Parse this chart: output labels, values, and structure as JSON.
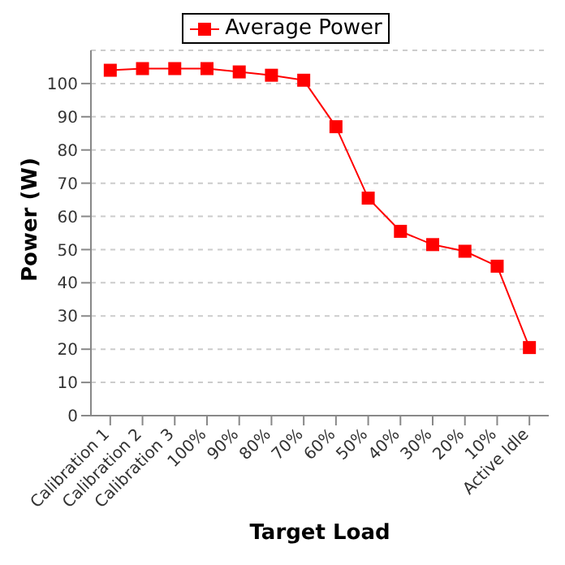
{
  "chart_data": {
    "type": "line",
    "xlabel": "Target Load",
    "ylabel": "Power (W)",
    "categories": [
      "Calibration 1",
      "Calibration 2",
      "Calibration 3",
      "100%",
      "90%",
      "80%",
      "70%",
      "60%",
      "50%",
      "40%",
      "30%",
      "20%",
      "10%",
      "Active Idle"
    ],
    "series": [
      {
        "name": "Average Power",
        "color": "#ff0000",
        "values": [
          104,
          104.5,
          104.5,
          104.5,
          103.5,
          102.5,
          101,
          87,
          65.5,
          55.5,
          51.5,
          49.5,
          45,
          20.5
        ]
      }
    ],
    "ylim": [
      0,
      110
    ],
    "yticks": [
      0,
      10,
      20,
      30,
      40,
      50,
      60,
      70,
      80,
      90,
      100
    ],
    "grid": "y",
    "legend": "top",
    "marker": "square",
    "line_style": "solid"
  }
}
